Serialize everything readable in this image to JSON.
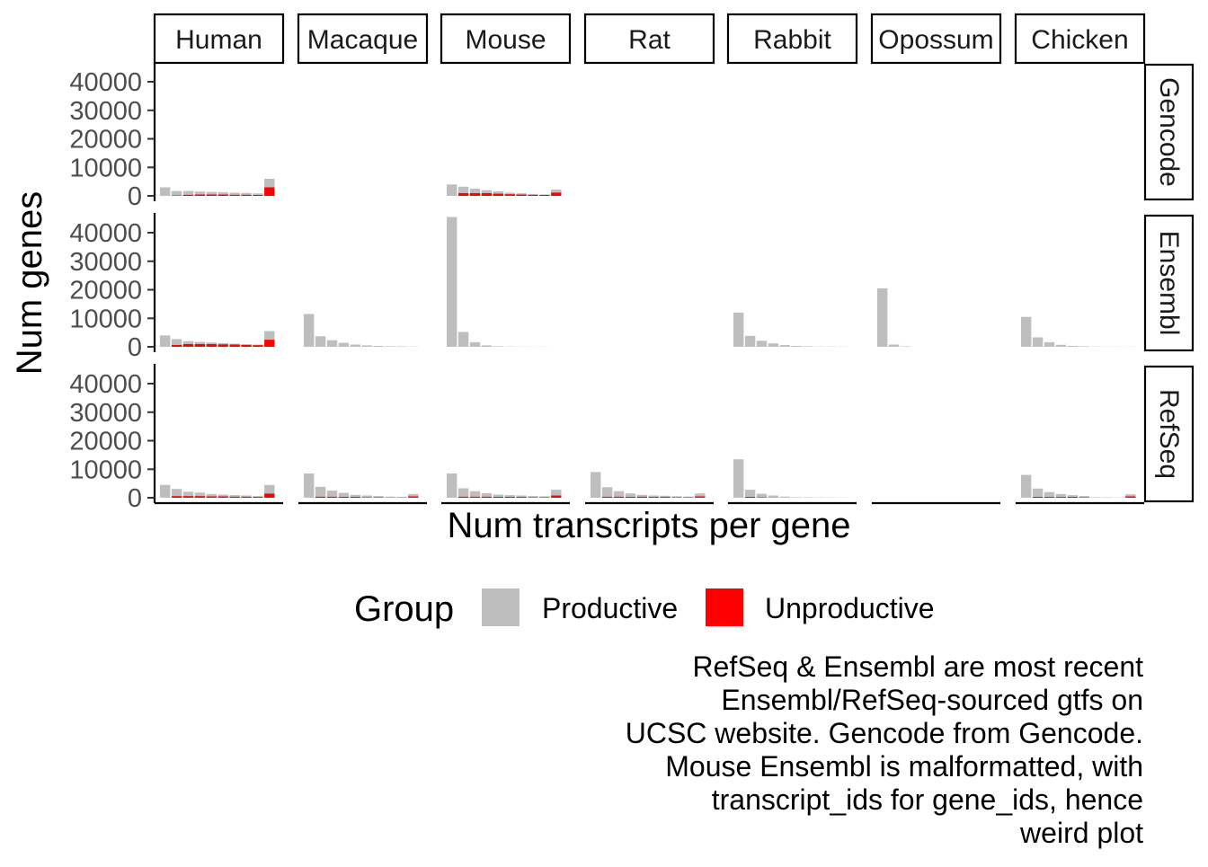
{
  "chart_data": {
    "type": "bar",
    "layout": "facet_grid",
    "xlabel": "Num transcripts per gene",
    "ylabel": "Num genes",
    "ylim": [
      0,
      46000
    ],
    "y_ticks": [
      0,
      10000,
      20000,
      30000,
      40000
    ],
    "y_tick_labels": [
      "0",
      "10000",
      "20000",
      "30000",
      "40000"
    ],
    "x_tick_labels_shown": false,
    "bins": [
      1,
      2,
      3,
      4,
      5,
      6,
      7,
      8,
      9,
      10
    ],
    "stacking": "stacked",
    "grid": false,
    "columns": [
      "Human",
      "Macaque",
      "Mouse",
      "Rat",
      "Rabbit",
      "Opossum",
      "Chicken"
    ],
    "rows": [
      "Gencode",
      "Ensembl",
      "RefSeq"
    ],
    "legend": {
      "title": "Group",
      "position": "bottom",
      "items": [
        {
          "label": "Productive",
          "color": "#bebebe"
        },
        {
          "label": "Unproductive",
          "color": "#ff0000"
        }
      ]
    },
    "caption": [
      "RefSeq & Ensembl are most recent",
      "Ensembl/RefSeq-sourced gtfs on",
      "UCSC website. Gencode from Gencode.",
      "Mouse Ensembl is malformatted, with",
      "transcript_ids for gene_ids, hence",
      "weird plot"
    ],
    "panels": [
      {
        "row": "Gencode",
        "column": "Human",
        "productive": [
          3000,
          1500,
          1300,
          1000,
          900,
          800,
          700,
          600,
          500,
          3000
        ],
        "unproductive": [
          0,
          200,
          400,
          500,
          500,
          500,
          400,
          400,
          350,
          3000
        ]
      },
      {
        "row": "Gencode",
        "column": "Macaque",
        "productive": [],
        "unproductive": []
      },
      {
        "row": "Gencode",
        "column": "Mouse",
        "productive": [
          4000,
          2200,
          1500,
          1000,
          800,
          500,
          400,
          300,
          200,
          1000
        ],
        "unproductive": [
          0,
          1000,
          1000,
          1000,
          800,
          600,
          500,
          400,
          300,
          1200
        ]
      },
      {
        "row": "Gencode",
        "column": "Rat",
        "productive": [],
        "unproductive": []
      },
      {
        "row": "Gencode",
        "column": "Rabbit",
        "productive": [],
        "unproductive": []
      },
      {
        "row": "Gencode",
        "column": "Opossum",
        "productive": [],
        "unproductive": []
      },
      {
        "row": "Gencode",
        "column": "Chicken",
        "productive": [],
        "unproductive": []
      },
      {
        "row": "Ensembl",
        "column": "Human",
        "productive": [
          4000,
          2000,
          1000,
          700,
          500,
          400,
          300,
          250,
          200,
          3000
        ],
        "unproductive": [
          0,
          700,
          1000,
          1000,
          1000,
          900,
          800,
          700,
          600,
          2500
        ]
      },
      {
        "row": "Ensembl",
        "column": "Macaque",
        "productive": [
          11500,
          3700,
          2300,
          1400,
          800,
          500,
          300,
          200,
          150,
          100
        ],
        "unproductive": [
          0,
          0,
          0,
          0,
          0,
          0,
          0,
          0,
          0,
          0
        ]
      },
      {
        "row": "Ensembl",
        "column": "Mouse",
        "productive": [
          45500,
          5200,
          1600,
          500,
          200,
          100,
          50,
          30,
          20,
          10
        ],
        "unproductive": [
          0,
          0,
          0,
          0,
          0,
          0,
          0,
          0,
          0,
          0
        ]
      },
      {
        "row": "Ensembl",
        "column": "Rat",
        "productive": [],
        "unproductive": []
      },
      {
        "row": "Ensembl",
        "column": "Rabbit",
        "productive": [
          12000,
          3800,
          2100,
          1200,
          600,
          300,
          200,
          100,
          80,
          50
        ],
        "unproductive": [
          0,
          0,
          0,
          0,
          0,
          0,
          0,
          0,
          0,
          0
        ]
      },
      {
        "row": "Ensembl",
        "column": "Opossum",
        "productive": [
          20500,
          800,
          150,
          0,
          0,
          0,
          0,
          0,
          0,
          0
        ],
        "unproductive": [
          0,
          0,
          0,
          0,
          0,
          0,
          0,
          0,
          0,
          0
        ]
      },
      {
        "row": "Ensembl",
        "column": "Chicken",
        "productive": [
          10500,
          3300,
          1600,
          700,
          300,
          200,
          100,
          60,
          40,
          20
        ],
        "unproductive": [
          0,
          0,
          0,
          0,
          0,
          0,
          0,
          0,
          0,
          0
        ]
      },
      {
        "row": "RefSeq",
        "column": "Human",
        "productive": [
          4500,
          2500,
          1500,
          1200,
          800,
          600,
          500,
          400,
          300,
          3000
        ],
        "unproductive": [
          0,
          600,
          600,
          600,
          500,
          500,
          400,
          400,
          300,
          1500
        ]
      },
      {
        "row": "RefSeq",
        "column": "Macaque",
        "productive": [
          8500,
          3400,
          2100,
          1400,
          700,
          600,
          400,
          300,
          200,
          800
        ],
        "unproductive": [
          0,
          400,
          400,
          300,
          300,
          200,
          200,
          100,
          100,
          500
        ]
      },
      {
        "row": "RefSeq",
        "column": "Mouse",
        "productive": [
          8500,
          2900,
          1900,
          1200,
          800,
          600,
          500,
          400,
          300,
          2000
        ],
        "unproductive": [
          0,
          400,
          400,
          400,
          300,
          300,
          300,
          200,
          200,
          800
        ]
      },
      {
        "row": "RefSeq",
        "column": "Rat",
        "productive": [
          9000,
          3300,
          1900,
          1200,
          600,
          500,
          400,
          300,
          200,
          1000
        ],
        "unproductive": [
          0,
          400,
          400,
          300,
          400,
          300,
          300,
          200,
          200,
          500
        ]
      },
      {
        "row": "RefSeq",
        "column": "Rabbit",
        "productive": [
          13500,
          2500,
          1200,
          700,
          400,
          200,
          150,
          100,
          80,
          60
        ],
        "unproductive": [
          0,
          300,
          200,
          100,
          0,
          0,
          0,
          0,
          0,
          0
        ]
      },
      {
        "row": "RefSeq",
        "column": "Opossum",
        "productive": [],
        "unproductive": []
      },
      {
        "row": "RefSeq",
        "column": "Chicken",
        "productive": [
          8000,
          2900,
          1700,
          1000,
          600,
          400,
          200,
          150,
          100,
          700
        ],
        "unproductive": [
          0,
          300,
          300,
          300,
          300,
          200,
          0,
          0,
          0,
          500
        ]
      }
    ]
  }
}
